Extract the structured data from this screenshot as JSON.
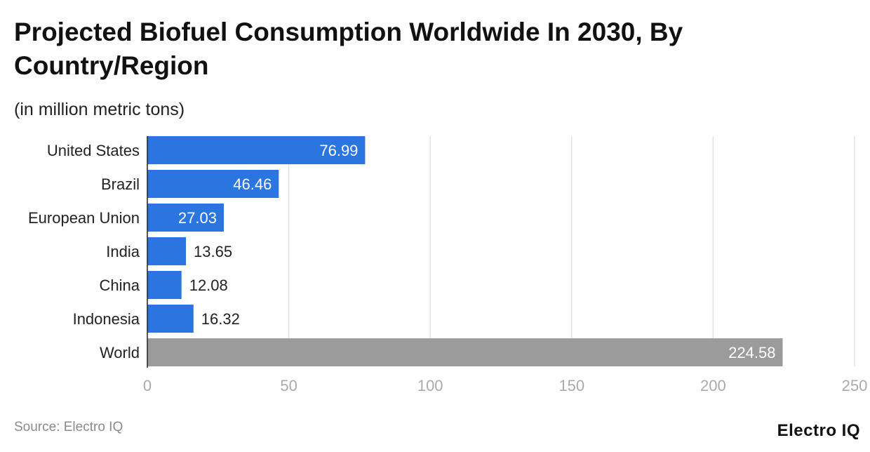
{
  "title": "Projected Biofuel Consumption Worldwide In 2030, By Country/Region",
  "subtitle": "(in million metric tons)",
  "source": "Source: Electro IQ",
  "logo": "Electro IQ",
  "chart_data": {
    "type": "bar",
    "orientation": "horizontal",
    "title": "Projected Biofuel Consumption Worldwide In 2030, By Country/Region",
    "subtitle": "(in million metric tons)",
    "categories": [
      "United States",
      "Brazil",
      "European Union",
      "India",
      "China",
      "Indonesia",
      "World"
    ],
    "values": [
      76.99,
      46.46,
      27.03,
      13.65,
      12.08,
      16.32,
      224.58
    ],
    "value_labels": [
      "76.99",
      "46.46",
      "27.03",
      "13.65",
      "12.08",
      "16.32",
      "224.58"
    ],
    "colors": [
      "#2a75e0",
      "#2a75e0",
      "#2a75e0",
      "#2a75e0",
      "#2a75e0",
      "#2a75e0",
      "#9b9b9b"
    ],
    "xlim": [
      0,
      250
    ],
    "xticks": [
      "0",
      "50",
      "100",
      "150",
      "200",
      "250"
    ],
    "grid": true,
    "xlabel": "",
    "ylabel": ""
  }
}
